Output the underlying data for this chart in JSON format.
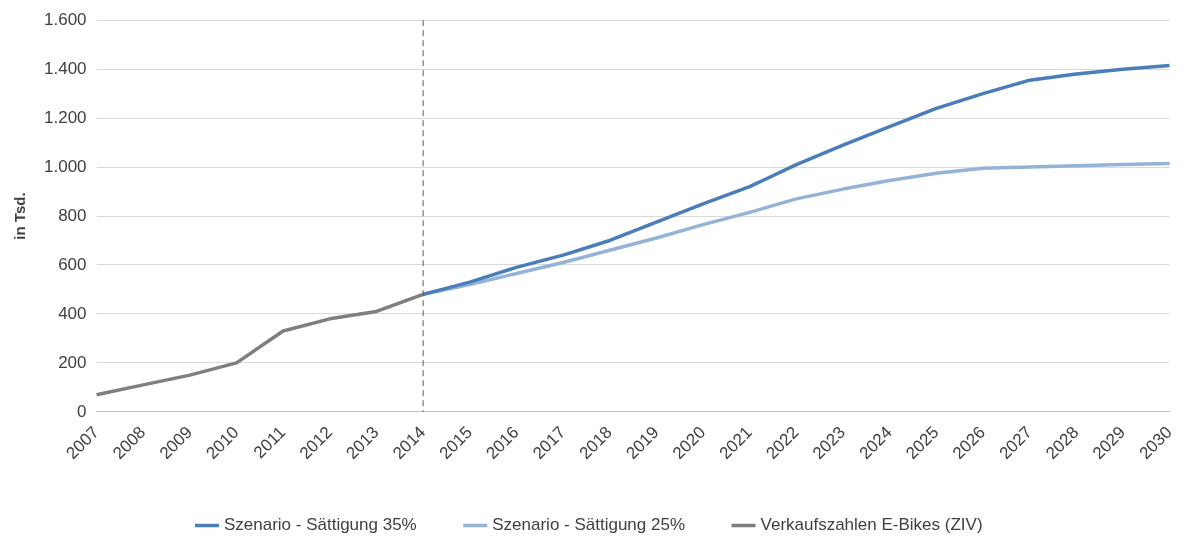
{
  "chart_data": {
    "type": "line",
    "ylabel": "in Tsd.",
    "categories": [
      "2007",
      "2008",
      "2009",
      "2010",
      "2011",
      "2012",
      "2013",
      "2014",
      "2015",
      "2016",
      "2017",
      "2018",
      "2019",
      "2020",
      "2021",
      "2022",
      "2023",
      "2024",
      "2025",
      "2026",
      "2027",
      "2028",
      "2029",
      "2030"
    ],
    "series": [
      {
        "name": "Szenario - Sättigung 35%",
        "color": "#4a7ebb",
        "values": [
          null,
          null,
          null,
          null,
          null,
          null,
          null,
          480,
          530,
          590,
          640,
          700,
          775,
          850,
          920,
          1010,
          1090,
          1165,
          1240,
          1300,
          1355,
          1380,
          1400,
          1415
        ]
      },
      {
        "name": "Szenario - Sättigung 25%",
        "color": "#95b3d7",
        "values": [
          null,
          null,
          null,
          null,
          null,
          null,
          null,
          480,
          520,
          565,
          610,
          660,
          710,
          765,
          815,
          870,
          910,
          945,
          975,
          995,
          1000,
          1005,
          1010,
          1015
        ]
      },
      {
        "name": "Verkaufszahlen E-Bikes (ZIV)",
        "color": "#7f7f7f",
        "values": [
          70,
          110,
          150,
          200,
          330,
          380,
          410,
          480,
          null,
          null,
          null,
          null,
          null,
          null,
          null,
          null,
          null,
          null,
          null,
          null,
          null,
          null,
          null,
          null
        ]
      }
    ],
    "ylim": [
      0,
      1600
    ],
    "yticks": [
      0,
      200,
      400,
      600,
      800,
      {
        "value": 1000,
        "label": "1.000"
      },
      {
        "value": 1200,
        "label": "1.200"
      },
      {
        "value": 1400,
        "label": "1.400"
      },
      {
        "value": 1600,
        "label": "1.600"
      }
    ],
    "ref_lines": [
      {
        "axis": "x",
        "value": "2014",
        "color": "#595959",
        "line_style": "dashed"
      }
    ],
    "grid": "y",
    "legend": "bottom",
    "marker": "none",
    "line_style": "solid"
  }
}
